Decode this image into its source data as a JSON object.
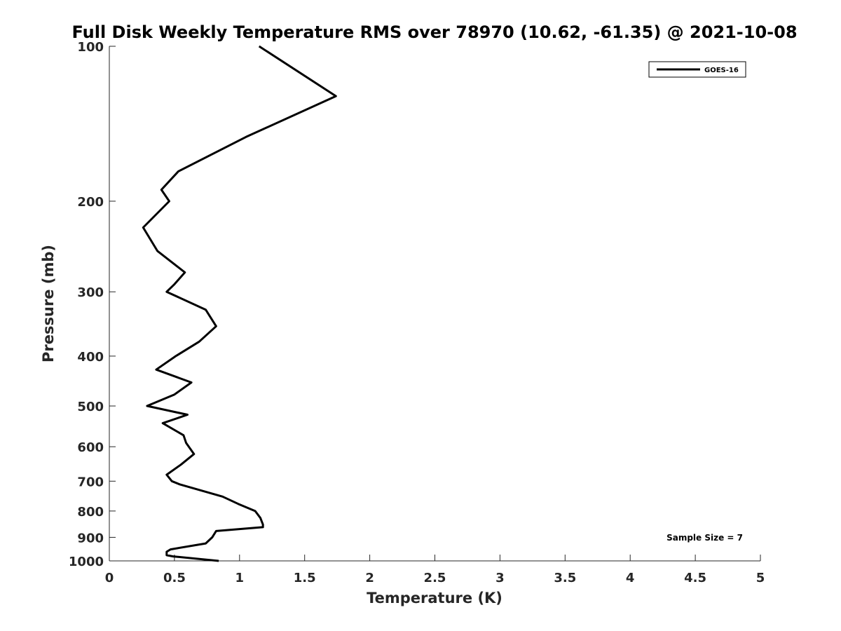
{
  "chart_data": {
    "type": "line",
    "title": "Full Disk Weekly Temperature RMS over 78970 (10.62, -61.35) @ 2021-10-08",
    "xlabel": "Temperature (K)",
    "ylabel": "Pressure (mb)",
    "xlim": [
      0,
      5
    ],
    "ylim": [
      1000,
      100
    ],
    "y_scale": "log",
    "x_ticks": [
      "0",
      "0.5",
      "1",
      "1.5",
      "2",
      "2.5",
      "3",
      "3.5",
      "4",
      "4.5",
      "5"
    ],
    "y_ticks": [
      "100",
      "200",
      "300",
      "400",
      "500",
      "600",
      "700",
      "800",
      "900",
      "1000"
    ],
    "grid": false,
    "legend_position": "top-right",
    "annotation": "Sample Size = 7",
    "series": [
      {
        "name": "GOES-16",
        "color": "#000000",
        "x": [
          1.15,
          1.74,
          1.05,
          0.53,
          0.4,
          0.46,
          0.26,
          0.37,
          0.58,
          0.5,
          0.44,
          0.74,
          0.82,
          0.69,
          0.51,
          0.36,
          0.63,
          0.5,
          0.29,
          0.6,
          0.41,
          0.57,
          0.59,
          0.65,
          0.55,
          0.44,
          0.48,
          0.54,
          0.87,
          0.99,
          1.12,
          1.16,
          1.18,
          1.18,
          0.82,
          0.79,
          0.74,
          0.47,
          0.44,
          0.44,
          0.44,
          0.49,
          0.84
        ],
        "y": [
          100,
          125,
          150,
          175,
          190,
          200,
          225,
          250,
          275,
          290,
          300,
          325,
          350,
          375,
          400,
          425,
          450,
          475,
          500,
          520,
          540,
          570,
          590,
          620,
          650,
          680,
          700,
          710,
          750,
          775,
          800,
          825,
          850,
          860,
          875,
          900,
          925,
          950,
          960,
          970,
          975,
          980,
          1000
        ]
      }
    ]
  }
}
